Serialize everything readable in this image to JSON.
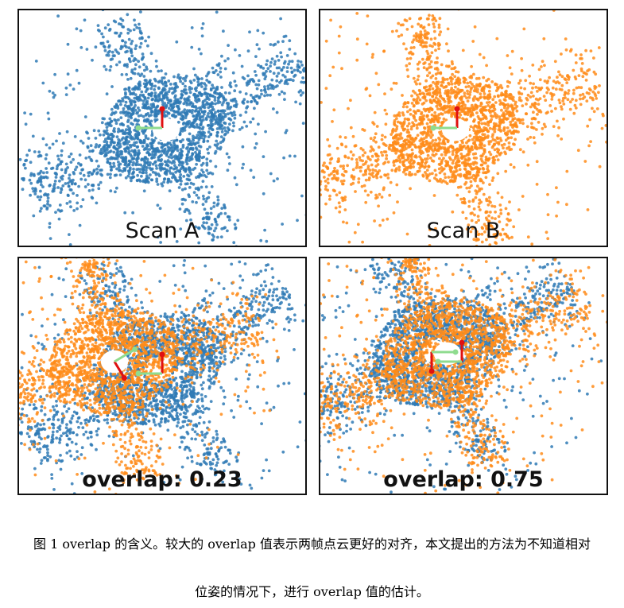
{
  "figure": {
    "colors": {
      "scan_a": "#2f7ab5",
      "scan_b": "#ff8c1a",
      "arrow_red": "#e01010",
      "arrow_green": "#8fdc8f"
    },
    "panels": [
      {
        "id": "scan-a",
        "label": "Scan A",
        "style": "scan"
      },
      {
        "id": "scan-b",
        "label": "Scan B",
        "style": "scan"
      },
      {
        "id": "overlap-low",
        "label": "overlap: 0.23",
        "style": "ov"
      },
      {
        "id": "overlap-high",
        "label": "overlap: 0.75",
        "style": "ov"
      }
    ]
  },
  "caption": {
    "line1": "图  1 overlap 的含义。较大的 overlap 值表示两帧点云更好的对齐，本文提出的方法为不知道相对",
    "line2": "位姿的情况下，进行 overlap 值的估计。"
  }
}
